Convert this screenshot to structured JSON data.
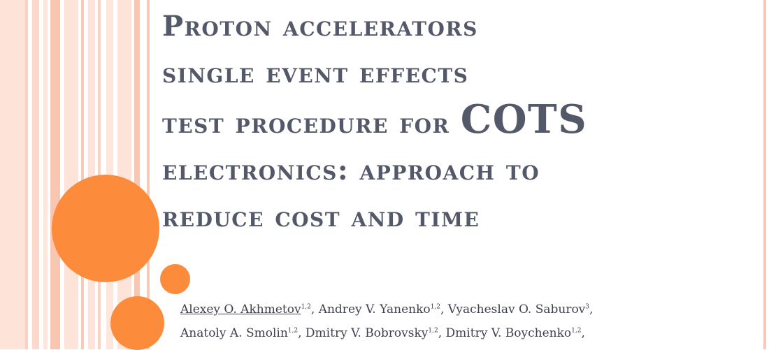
{
  "title": {
    "line1": "Proton accelerators",
    "line2": "single event effects",
    "line3_part": "test procedure for ",
    "line3_big": "COTS",
    "line4": "electronics: approach to",
    "line5": "reduce cost and time"
  },
  "authors": {
    "line1": [
      {
        "name": "Alexey O. Akhmetov",
        "aff": "1,2",
        "sep": ", "
      },
      {
        "name": "Andrey V. Yanenko",
        "aff": "1,2",
        "sep": ", "
      },
      {
        "name": "Vyacheslav O. Saburov",
        "aff": "3",
        "sep": ","
      }
    ],
    "line2": [
      {
        "name": "Anatoly A. Smolin",
        "aff": "1,2",
        "sep": ", "
      },
      {
        "name": "Dmitry V. Bobrovsky",
        "aff": "1,2",
        "sep": ", "
      },
      {
        "name": "Dmitry V. Boychenko",
        "aff": "1,2",
        "sep": ","
      }
    ]
  },
  "colors": {
    "accent": "#fd8b3c",
    "stripe_light": "#fde3d8",
    "stripe_mid": "#f8c9b6",
    "title_text": "#545969"
  }
}
